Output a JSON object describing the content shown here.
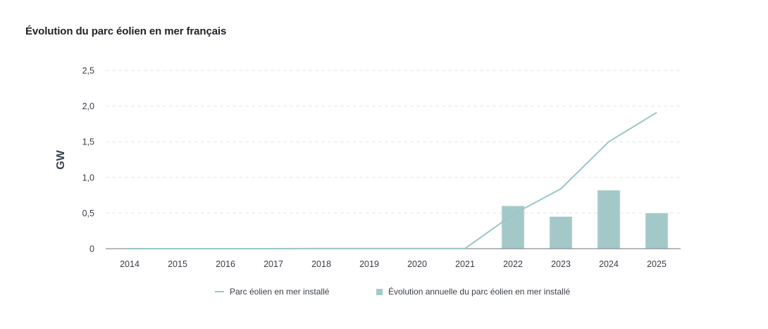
{
  "title": "Évolution du parc éolien en mer français",
  "colors": {
    "line": "#9cc6c6",
    "bar": "#a3c8c8",
    "bar_border": "#dcecec",
    "axis": "#8a8f96",
    "grid": "#e3e5e8",
    "text": "#3a3f47"
  },
  "legend": {
    "items": [
      {
        "label": "Parc éolien en mer installé",
        "marker": "line"
      },
      {
        "label": "Évolution annuelle du parc éolien en mer installé",
        "marker": "square"
      }
    ]
  },
  "chart_data": {
    "type": "bar+line",
    "title": "Évolution du parc éolien en mer français",
    "xlabel": "",
    "ylabel": "GW",
    "ylim": [
      0,
      2.5
    ],
    "yticks": [
      0,
      0.5,
      1.0,
      1.5,
      2.0,
      2.5
    ],
    "ytick_labels": [
      "0",
      "0,5",
      "1,0",
      "1,5",
      "2,0",
      "2,5"
    ],
    "grid": true,
    "legend_position": "bottom",
    "categories": [
      "2014",
      "2015",
      "2016",
      "2017",
      "2018",
      "2019",
      "2020",
      "2021",
      "2022",
      "2023",
      "2024",
      "2025"
    ],
    "series": [
      {
        "name": "Parc éolien en mer installé",
        "type": "line",
        "values": [
          0,
          0,
          0,
          0,
          0.002,
          0.002,
          0.002,
          0.002,
          0.48,
          0.84,
          1.5,
          1.91
        ]
      },
      {
        "name": "Évolution annuelle du parc éolien en mer installé",
        "type": "bar",
        "values": [
          null,
          null,
          null,
          null,
          null,
          null,
          null,
          null,
          0.6,
          0.45,
          0.82,
          0.5
        ]
      }
    ]
  }
}
